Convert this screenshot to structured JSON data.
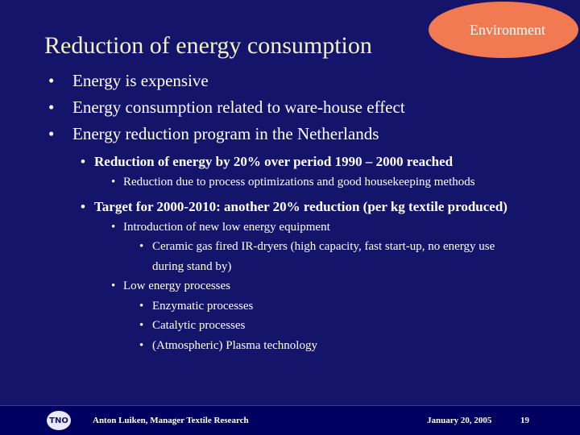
{
  "header": {
    "title": "Reduction of energy consumption",
    "tag": "Environment"
  },
  "items": [
    {
      "text": "Energy is expensive"
    },
    {
      "text": "Energy consumption related to ware-house effect"
    },
    {
      "text": "Energy reduction program in the Netherlands",
      "children": [
        {
          "text": "Reduction of energy by 20% over period 1990 – 2000 reached",
          "children": [
            {
              "text": "Reduction due to process optimizations and good housekeeping methods"
            }
          ]
        },
        {
          "text": "Target for 2000-2010: another 20% reduction (per kg textile produced)",
          "children": [
            {
              "text": "Introduction of new low energy equipment",
              "children": [
                {
                  "text": "Ceramic gas fired IR-dryers (high capacity, fast start-up, no energy use during stand by)"
                }
              ]
            },
            {
              "text": "Low energy processes",
              "children": [
                {
                  "text": "Enzymatic processes"
                },
                {
                  "text": "Catalytic processes"
                },
                {
                  "text": "(Atmospheric) Plasma technology"
                }
              ]
            }
          ]
        }
      ]
    }
  ],
  "footer": {
    "logo": "TNO",
    "author": "Anton Luiken, Manager Textile Research",
    "date": "January 20, 2005",
    "page": "19"
  }
}
